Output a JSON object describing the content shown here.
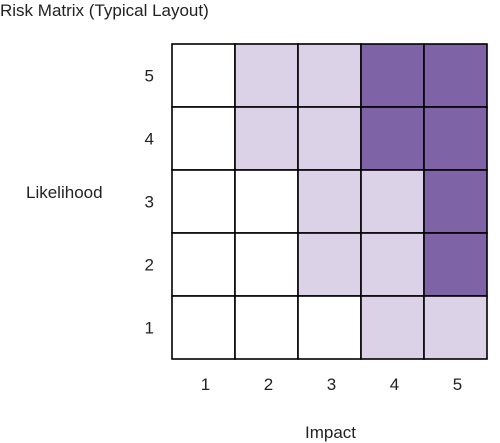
{
  "title": "Risk Matrix (Typical Layout)",
  "y_axis_label": "Likelihood",
  "x_axis_label": "Impact",
  "rows": [
    "5",
    "4",
    "3",
    "2",
    "1"
  ],
  "columns": [
    "1",
    "2",
    "3",
    "4",
    "5"
  ],
  "colors": {
    "level_0": "#ffffff",
    "level_1": "#dcd2e7",
    "level_2": "#7e63a6",
    "grid_line": "#000000"
  },
  "cell_levels": [
    [
      0,
      1,
      1,
      2,
      2
    ],
    [
      0,
      1,
      1,
      2,
      2
    ],
    [
      0,
      0,
      1,
      1,
      2
    ],
    [
      0,
      0,
      1,
      1,
      2
    ],
    [
      0,
      0,
      0,
      1,
      1
    ]
  ]
}
